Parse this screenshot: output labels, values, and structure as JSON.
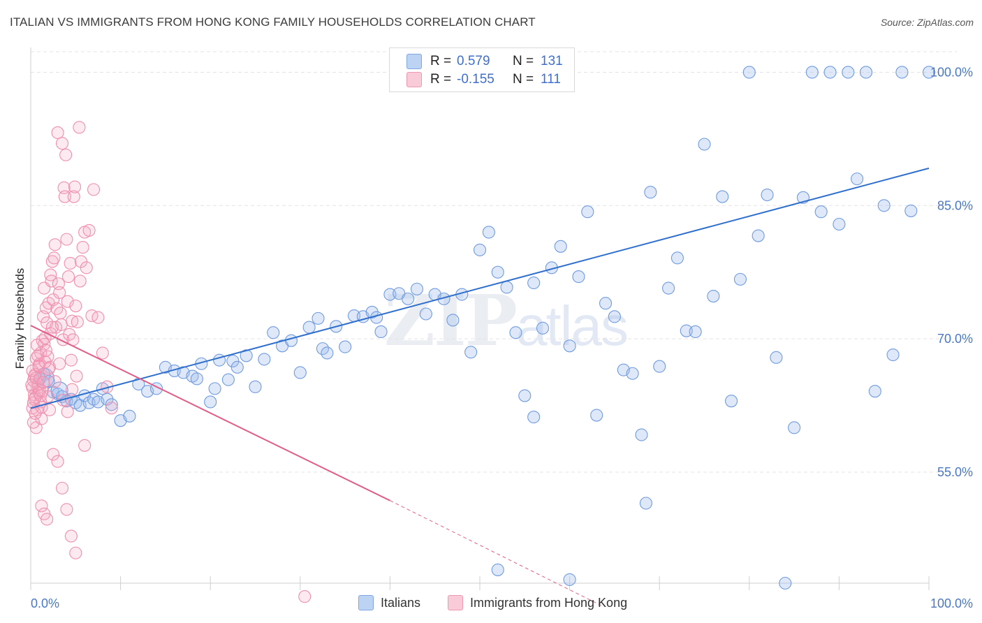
{
  "header": {
    "title": "ITALIAN VS IMMIGRANTS FROM HONG KONG FAMILY HOUSEHOLDS CORRELATION CHART",
    "source": "Source: ZipAtlas.com"
  },
  "legend": {
    "rows": [
      {
        "r_label": "R =",
        "r_value": "0.579",
        "n_label": "N =",
        "n_value": "131",
        "color": "#a9c6f0"
      },
      {
        "r_label": "R =",
        "r_value": "-0.155",
        "n_label": "N =",
        "n_value": "111",
        "color": "#f5b6c9"
      }
    ]
  },
  "bottom_legend": {
    "italians": "Italians",
    "hong_kong": "Immigrants from Hong Kong"
  },
  "watermark": {
    "zip": "ZIP",
    "atlas": "atlas"
  },
  "colors": {
    "blue_fill": "rgba(160,190,238,0.35)",
    "blue_stroke": "#6f9be0",
    "blue_line": "#2f6fcc",
    "pink_fill": "rgba(245,170,195,0.25)",
    "pink_stroke": "#ef8fad",
    "pink_line": "#e05f8a",
    "grid": "#e3e3e3",
    "tick_label": "#4a78c2"
  },
  "chart_data": {
    "type": "scatter",
    "title": "ITALIAN VS IMMIGRANTS FROM HONG KONG FAMILY HOUSEHOLDS CORRELATION CHART",
    "xlabel": "",
    "ylabel": "Family Households",
    "xlim": [
      0,
      100
    ],
    "ylim": [
      42.5,
      102
    ],
    "x_tick_labels": [
      "0.0%",
      "100.0%"
    ],
    "y_ticks": [
      55,
      70,
      85,
      100
    ],
    "y_tick_labels": [
      "55.0%",
      "70.0%",
      "85.0%",
      "100.0%"
    ],
    "grid": true,
    "legend_position": "top-center",
    "series": [
      {
        "name": "Italians",
        "r": 0.579,
        "n": 131,
        "trend": {
          "x0": 0,
          "y0": 62.2,
          "x1": 100,
          "y1": 89.2
        },
        "points": [
          [
            1,
            65.5
          ],
          [
            1.5,
            66.0
          ],
          [
            2,
            65.2
          ],
          [
            2.5,
            64.0
          ],
          [
            3,
            63.8
          ],
          [
            3.5,
            63.5
          ],
          [
            4,
            63.0
          ],
          [
            4.5,
            63.2
          ],
          [
            5,
            62.8
          ],
          [
            5.5,
            62.5
          ],
          [
            6,
            63.6
          ],
          [
            6.5,
            62.8
          ],
          [
            7,
            63.2
          ],
          [
            7.5,
            62.9
          ],
          [
            8,
            64.4
          ],
          [
            8.5,
            63.2
          ],
          [
            9,
            62.6
          ],
          [
            10,
            60.8
          ],
          [
            11,
            61.3
          ],
          [
            12,
            64.9
          ],
          [
            13,
            64.1
          ],
          [
            14,
            64.4
          ],
          [
            15,
            66.8
          ],
          [
            16,
            66.4
          ],
          [
            17,
            66.2
          ],
          [
            18,
            65.8
          ],
          [
            18.5,
            65.5
          ],
          [
            19,
            67.2
          ],
          [
            20,
            62.9
          ],
          [
            20.5,
            64.4
          ],
          [
            21,
            67.6
          ],
          [
            22,
            65.4
          ],
          [
            22.5,
            67.5
          ],
          [
            23,
            66.8
          ],
          [
            24,
            68.1
          ],
          [
            25,
            64.6
          ],
          [
            26,
            67.7
          ],
          [
            27,
            70.7
          ],
          [
            28,
            69.2
          ],
          [
            29,
            69.8
          ],
          [
            30,
            66.2
          ],
          [
            31,
            71.3
          ],
          [
            32,
            72.3
          ],
          [
            32.5,
            68.9
          ],
          [
            33,
            68.4
          ],
          [
            34,
            71.4
          ],
          [
            35,
            69.1
          ],
          [
            36,
            72.6
          ],
          [
            37,
            72.5
          ],
          [
            38,
            73.0
          ],
          [
            38.5,
            72.4
          ],
          [
            39,
            70.8
          ],
          [
            40,
            75.0
          ],
          [
            41,
            75.1
          ],
          [
            42,
            74.5
          ],
          [
            43,
            75.6
          ],
          [
            44,
            72.8
          ],
          [
            45,
            75.0
          ],
          [
            46,
            74.5
          ],
          [
            47,
            72.1
          ],
          [
            48,
            75.0
          ],
          [
            49,
            68.5
          ],
          [
            50,
            80.0
          ],
          [
            51,
            82.0
          ],
          [
            52,
            77.5
          ],
          [
            53,
            75.8
          ],
          [
            54,
            70.7
          ],
          [
            55,
            63.6
          ],
          [
            56,
            76.3
          ],
          [
            57,
            71.2
          ],
          [
            58,
            78.0
          ],
          [
            59,
            80.4
          ],
          [
            60,
            69.2
          ],
          [
            61,
            77.0
          ],
          [
            62,
            84.3
          ],
          [
            63,
            61.4
          ],
          [
            64,
            74.0
          ],
          [
            65,
            72.5
          ],
          [
            66,
            66.5
          ],
          [
            67,
            66.1
          ],
          [
            68,
            59.2
          ],
          [
            68.5,
            51.5
          ],
          [
            69,
            86.5
          ],
          [
            70,
            66.9
          ],
          [
            71,
            75.7
          ],
          [
            72,
            79.1
          ],
          [
            73,
            70.9
          ],
          [
            74,
            70.8
          ],
          [
            75,
            91.9
          ],
          [
            76,
            74.8
          ],
          [
            77,
            86.0
          ],
          [
            78,
            63.0
          ],
          [
            79,
            76.7
          ],
          [
            80,
            100
          ],
          [
            81,
            81.6
          ],
          [
            82,
            86.2
          ],
          [
            83,
            67.9
          ],
          [
            84,
            42.5
          ],
          [
            85,
            60.0
          ],
          [
            86,
            85.9
          ],
          [
            87,
            100
          ],
          [
            88,
            84.3
          ],
          [
            89,
            100
          ],
          [
            90,
            82.9
          ],
          [
            91,
            100
          ],
          [
            92,
            88.0
          ],
          [
            93,
            100
          ],
          [
            94,
            64.1
          ],
          [
            95,
            85.0
          ],
          [
            96,
            68.2
          ],
          [
            97,
            100
          ],
          [
            98,
            84.4
          ],
          [
            100,
            100
          ],
          [
            52,
            44.0
          ],
          [
            56,
            61.2
          ],
          [
            60,
            42.9
          ]
        ]
      },
      {
        "name": "Immigrants from Hong Kong",
        "r": -0.155,
        "n": 111,
        "trend": {
          "x0": 0,
          "y0": 71.5,
          "x1": 40,
          "y1": 51.8
        },
        "trend_dashed": {
          "x0": 40,
          "y0": 51.8,
          "x1": 63.5,
          "y1": 40
        },
        "points": [
          [
            0.2,
            64.5
          ],
          [
            0.3,
            65.3
          ],
          [
            0.4,
            63.7
          ],
          [
            0.5,
            66.0
          ],
          [
            0.6,
            60.0
          ],
          [
            0.7,
            62.0
          ],
          [
            0.8,
            64.5
          ],
          [
            0.9,
            67.0
          ],
          [
            1.0,
            65.6
          ],
          [
            1.1,
            68.4
          ],
          [
            1.2,
            61.0
          ],
          [
            1.3,
            69.8
          ],
          [
            1.4,
            72.5
          ],
          [
            1.5,
            75.7
          ],
          [
            1.6,
            70.1
          ],
          [
            1.7,
            73.5
          ],
          [
            1.8,
            71.8
          ],
          [
            1.9,
            68.0
          ],
          [
            2.0,
            74.0
          ],
          [
            2.1,
            66.8
          ],
          [
            2.2,
            77.2
          ],
          [
            2.3,
            76.5
          ],
          [
            2.4,
            78.7
          ],
          [
            2.5,
            74.4
          ],
          [
            2.6,
            79.1
          ],
          [
            2.7,
            80.6
          ],
          [
            2.8,
            71.3
          ],
          [
            2.9,
            73.4
          ],
          [
            3.0,
            93.2
          ],
          [
            3.1,
            76.2
          ],
          [
            3.2,
            75.2
          ],
          [
            3.3,
            72.9
          ],
          [
            3.4,
            71.6
          ],
          [
            3.5,
            92.0
          ],
          [
            3.6,
            69.9
          ],
          [
            3.7,
            87.0
          ],
          [
            3.8,
            86.0
          ],
          [
            3.9,
            90.7
          ],
          [
            4.0,
            81.2
          ],
          [
            4.1,
            74.2
          ],
          [
            4.2,
            77.0
          ],
          [
            4.3,
            70.5
          ],
          [
            4.4,
            78.5
          ],
          [
            4.5,
            67.6
          ],
          [
            4.6,
            72.0
          ],
          [
            4.7,
            69.9
          ],
          [
            4.8,
            86.0
          ],
          [
            4.9,
            87.1
          ],
          [
            5.0,
            73.7
          ],
          [
            5.2,
            71.9
          ],
          [
            5.4,
            93.8
          ],
          [
            5.5,
            76.5
          ],
          [
            5.6,
            78.7
          ],
          [
            5.8,
            80.3
          ],
          [
            6.0,
            82.0
          ],
          [
            6.2,
            78.0
          ],
          [
            6.5,
            82.2
          ],
          [
            6.8,
            72.6
          ],
          [
            7.0,
            86.8
          ],
          [
            7.5,
            72.4
          ],
          [
            8.0,
            68.4
          ],
          [
            8.5,
            64.6
          ],
          [
            9.0,
            62.2
          ],
          [
            1.2,
            51.2
          ],
          [
            1.5,
            50.3
          ],
          [
            1.8,
            49.7
          ],
          [
            2.5,
            57.0
          ],
          [
            3.0,
            56.2
          ],
          [
            3.5,
            53.2
          ],
          [
            4.0,
            50.8
          ],
          [
            4.5,
            47.8
          ],
          [
            5.0,
            45.9
          ],
          [
            6.0,
            58.0
          ],
          [
            0.2,
            62.2
          ],
          [
            0.5,
            63.4
          ],
          [
            0.8,
            64.9
          ],
          [
            1.0,
            67.2
          ],
          [
            1.5,
            69.4
          ],
          [
            2.0,
            66.6
          ],
          [
            0.3,
            60.6
          ],
          [
            30.5,
            41.0
          ],
          [
            0.4,
            65.8
          ],
          [
            0.6,
            67.8
          ],
          [
            0.9,
            63.9
          ],
          [
            1.1,
            62.9
          ],
          [
            1.3,
            64.1
          ],
          [
            1.7,
            68.7
          ],
          [
            2.2,
            70.6
          ],
          [
            2.4,
            71.3
          ],
          [
            2.7,
            65.2
          ],
          [
            3.2,
            67.2
          ],
          [
            3.6,
            63.1
          ],
          [
            4.1,
            61.8
          ],
          [
            4.6,
            64.3
          ],
          [
            5.1,
            65.8
          ],
          [
            0.1,
            64.8
          ],
          [
            0.2,
            66.4
          ],
          [
            0.3,
            62.8
          ],
          [
            0.4,
            63.2
          ],
          [
            0.5,
            61.6
          ],
          [
            0.6,
            65.6
          ],
          [
            0.7,
            69.3
          ],
          [
            0.8,
            68.1
          ],
          [
            0.9,
            66.9
          ],
          [
            1.0,
            64.2
          ],
          [
            1.1,
            63.6
          ],
          [
            1.2,
            62.3
          ],
          [
            1.4,
            65.1
          ],
          [
            1.6,
            67.4
          ],
          [
            1.9,
            63.5
          ],
          [
            2.1,
            62.0
          ]
        ]
      }
    ]
  }
}
